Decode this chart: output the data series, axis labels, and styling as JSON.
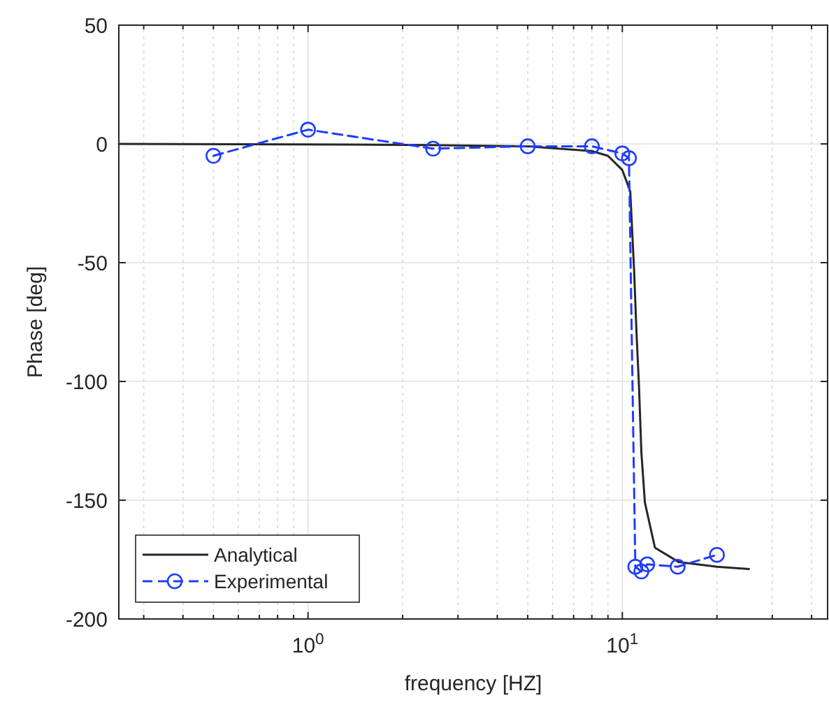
{
  "chart_data": {
    "type": "line",
    "xlabel": "frequency [HZ]",
    "ylabel": "Phase [deg]",
    "log": "x",
    "xlim": [
      0.25,
      45
    ],
    "ylim": [
      -200,
      50
    ],
    "xticks": [
      {
        "value": 0.3,
        "label": null
      },
      {
        "value": 0.4,
        "label": null
      },
      {
        "value": 0.5,
        "label": null
      },
      {
        "value": 0.6,
        "label": null
      },
      {
        "value": 0.7,
        "label": null
      },
      {
        "value": 0.8,
        "label": null
      },
      {
        "value": 0.9,
        "label": null
      },
      {
        "value": 1,
        "label": "10$^{0}$"
      },
      {
        "value": 2,
        "label": null
      },
      {
        "value": 3,
        "label": null
      },
      {
        "value": 4,
        "label": null
      },
      {
        "value": 5,
        "label": null
      },
      {
        "value": 6,
        "label": null
      },
      {
        "value": 7,
        "label": null
      },
      {
        "value": 8,
        "label": null
      },
      {
        "value": 9,
        "label": null
      },
      {
        "value": 10,
        "label": "10$^{1}$"
      },
      {
        "value": 20,
        "label": null
      },
      {
        "value": 30,
        "label": null
      },
      {
        "value": 40,
        "label": null
      }
    ],
    "yticks": [
      -200,
      -150,
      -100,
      -50,
      0,
      50
    ],
    "grid": true,
    "legend": "bottom left",
    "series": [
      {
        "name": "Analytical",
        "color": "#262626",
        "marker": "none",
        "line_style": "solid",
        "x": [
          0.25,
          1,
          2.5,
          5,
          8,
          9,
          10,
          10.6,
          10.9,
          11.1,
          11.3,
          11.5,
          11.8,
          12.7,
          15.1,
          20,
          25.3
        ],
        "values": [
          0,
          -0.2,
          -0.5,
          -1,
          -3,
          -5,
          -11,
          -20,
          -53,
          -80,
          -102,
          -130,
          -151,
          -170,
          -176,
          -178,
          -179
        ]
      },
      {
        "name": "Experimental",
        "color": "#1f3cff",
        "marker": "circle",
        "line_style": "dashed",
        "x": [
          0.5,
          1,
          2.5,
          5,
          8,
          10,
          10.5,
          11,
          11.5,
          12,
          15,
          20
        ],
        "values": [
          -5,
          6,
          -2,
          -1,
          -1,
          -4,
          -6,
          -178,
          -180,
          -177,
          -178,
          -173
        ]
      }
    ]
  }
}
